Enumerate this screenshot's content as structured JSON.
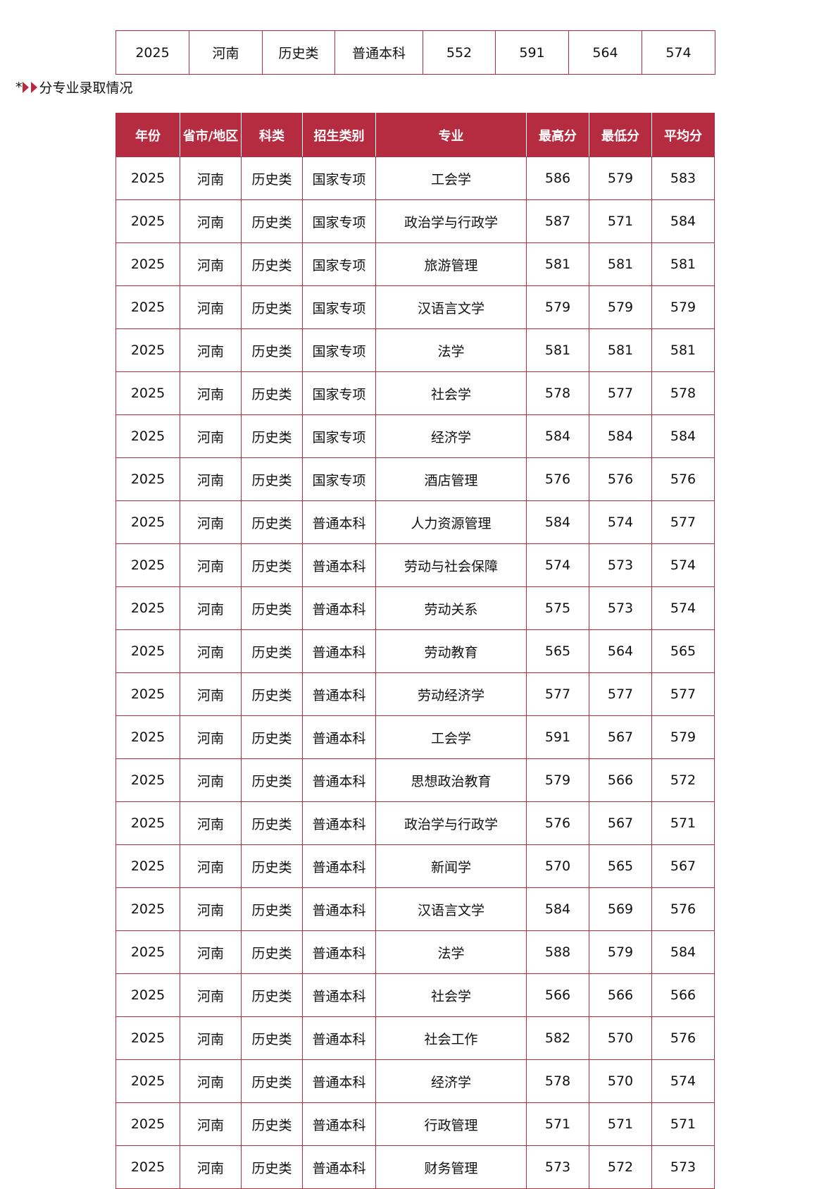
{
  "summary": {
    "row": [
      "2025",
      "河南",
      "历史类",
      "普通本科",
      "552",
      "591",
      "564",
      "574"
    ]
  },
  "section_heading": {
    "prefix": "*",
    "title": "分专业录取情况"
  },
  "detail": {
    "headers": [
      "年份",
      "省市/地区",
      "科类",
      "招生类别",
      "专业",
      "最高分",
      "最低分",
      "平均分"
    ],
    "rows": [
      [
        "2025",
        "河南",
        "历史类",
        "国家专项",
        "工会学",
        "586",
        "579",
        "583"
      ],
      [
        "2025",
        "河南",
        "历史类",
        "国家专项",
        "政治学与行政学",
        "587",
        "571",
        "584"
      ],
      [
        "2025",
        "河南",
        "历史类",
        "国家专项",
        "旅游管理",
        "581",
        "581",
        "581"
      ],
      [
        "2025",
        "河南",
        "历史类",
        "国家专项",
        "汉语言文学",
        "579",
        "579",
        "579"
      ],
      [
        "2025",
        "河南",
        "历史类",
        "国家专项",
        "法学",
        "581",
        "581",
        "581"
      ],
      [
        "2025",
        "河南",
        "历史类",
        "国家专项",
        "社会学",
        "578",
        "577",
        "578"
      ],
      [
        "2025",
        "河南",
        "历史类",
        "国家专项",
        "经济学",
        "584",
        "584",
        "584"
      ],
      [
        "2025",
        "河南",
        "历史类",
        "国家专项",
        "酒店管理",
        "576",
        "576",
        "576"
      ],
      [
        "2025",
        "河南",
        "历史类",
        "普通本科",
        "人力资源管理",
        "584",
        "574",
        "577"
      ],
      [
        "2025",
        "河南",
        "历史类",
        "普通本科",
        "劳动与社会保障",
        "574",
        "573",
        "574"
      ],
      [
        "2025",
        "河南",
        "历史类",
        "普通本科",
        "劳动关系",
        "575",
        "573",
        "574"
      ],
      [
        "2025",
        "河南",
        "历史类",
        "普通本科",
        "劳动教育",
        "565",
        "564",
        "565"
      ],
      [
        "2025",
        "河南",
        "历史类",
        "普通本科",
        "劳动经济学",
        "577",
        "577",
        "577"
      ],
      [
        "2025",
        "河南",
        "历史类",
        "普通本科",
        "工会学",
        "591",
        "567",
        "579"
      ],
      [
        "2025",
        "河南",
        "历史类",
        "普通本科",
        "思想政治教育",
        "579",
        "566",
        "572"
      ],
      [
        "2025",
        "河南",
        "历史类",
        "普通本科",
        "政治学与行政学",
        "576",
        "567",
        "571"
      ],
      [
        "2025",
        "河南",
        "历史类",
        "普通本科",
        "新闻学",
        "570",
        "565",
        "567"
      ],
      [
        "2025",
        "河南",
        "历史类",
        "普通本科",
        "汉语言文学",
        "584",
        "569",
        "576"
      ],
      [
        "2025",
        "河南",
        "历史类",
        "普通本科",
        "法学",
        "588",
        "579",
        "584"
      ],
      [
        "2025",
        "河南",
        "历史类",
        "普通本科",
        "社会学",
        "566",
        "566",
        "566"
      ],
      [
        "2025",
        "河南",
        "历史类",
        "普通本科",
        "社会工作",
        "582",
        "570",
        "576"
      ],
      [
        "2025",
        "河南",
        "历史类",
        "普通本科",
        "经济学",
        "578",
        "570",
        "574"
      ],
      [
        "2025",
        "河南",
        "历史类",
        "普通本科",
        "行政管理",
        "571",
        "571",
        "571"
      ],
      [
        "2025",
        "河南",
        "历史类",
        "普通本科",
        "财务管理",
        "573",
        "572",
        "573"
      ]
    ]
  },
  "colors": {
    "accent": "#b52b40"
  }
}
